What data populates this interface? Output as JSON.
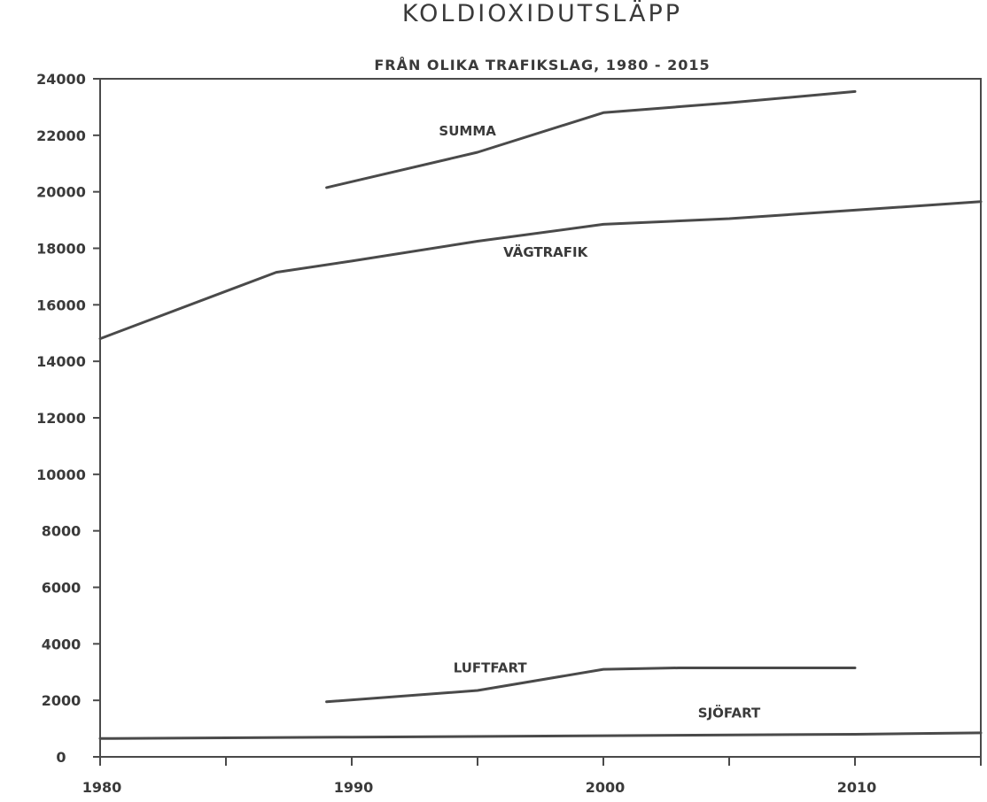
{
  "chart_data": {
    "type": "line",
    "title": "KOLDIOXIDUTSLÄPP",
    "subtitle": "FRÅN OLIKA TRAFIKSLAG, 1980 - 2015",
    "xlabel": "",
    "ylabel": "",
    "xlim": [
      1980,
      2015
    ],
    "ylim": [
      0,
      24000
    ],
    "x_ticks": [
      1980,
      1990,
      2000,
      2010
    ],
    "x_minor_ticks": [
      1985,
      1995,
      2005,
      2015
    ],
    "y_ticks": [
      0,
      2000,
      4000,
      6000,
      8000,
      10000,
      12000,
      14000,
      16000,
      18000,
      20000,
      22000,
      24000
    ],
    "grid": false,
    "legend": "none",
    "series": [
      {
        "name": "SUMMA",
        "points": [
          [
            1989,
            20150
          ],
          [
            1995,
            21400
          ],
          [
            2000,
            22800
          ],
          [
            2005,
            23150
          ],
          [
            2010,
            23550
          ]
        ]
      },
      {
        "name": "VÄGTRAFIK",
        "points": [
          [
            1980,
            14800
          ],
          [
            1987,
            17150
          ],
          [
            1990,
            17550
          ],
          [
            1995,
            18250
          ],
          [
            2000,
            18850
          ],
          [
            2005,
            19050
          ],
          [
            2010,
            19350
          ],
          [
            2015,
            19650
          ]
        ]
      },
      {
        "name": "LUFTFART",
        "points": [
          [
            1989,
            1950
          ],
          [
            1995,
            2350
          ],
          [
            2000,
            3100
          ],
          [
            2003,
            3150
          ],
          [
            2010,
            3150
          ]
        ]
      },
      {
        "name": "SJÖFART",
        "points": [
          [
            1980,
            650
          ],
          [
            1990,
            700
          ],
          [
            2000,
            750
          ],
          [
            2010,
            800
          ],
          [
            2015,
            850
          ]
        ]
      }
    ]
  },
  "style": {
    "line_color": "#4a4a4a",
    "text_color": "#3a3a3a",
    "background": "#ffffff"
  }
}
